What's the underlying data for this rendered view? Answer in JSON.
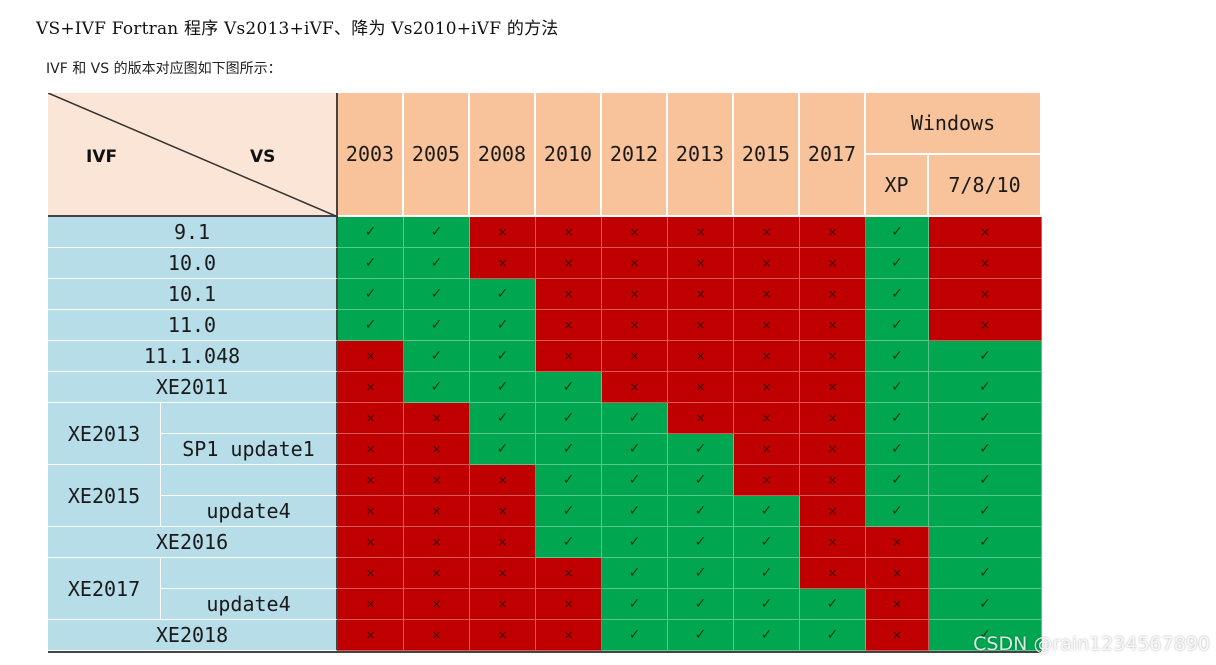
{
  "page": {
    "title": "VS+IVF  Fortran 程序  Vs2013+iVF、降为 Vs2010+iVF 的方法",
    "caption": "IVF 和 VS 的版本对应图如下图所示：",
    "watermark": "CSDN @rain1234567890"
  },
  "table": {
    "corner_left": "IVF",
    "corner_right": "VS",
    "vs_versions": [
      "2003",
      "2005",
      "2008",
      "2010",
      "2012",
      "2013",
      "2015",
      "2017"
    ],
    "windows_header": "Windows",
    "windows_versions": [
      "XP",
      "7/8/10"
    ],
    "row_groups": [
      {
        "label": "9.1",
        "subs": [
          ""
        ]
      },
      {
        "label": "10.0",
        "subs": [
          ""
        ]
      },
      {
        "label": "10.1",
        "subs": [
          ""
        ]
      },
      {
        "label": "11.0",
        "subs": [
          ""
        ]
      },
      {
        "label": "11.1.048",
        "subs": [
          ""
        ]
      },
      {
        "label": "XE2011",
        "subs": [
          ""
        ]
      },
      {
        "label": "XE2013",
        "subs": [
          "",
          "SP1 update1"
        ]
      },
      {
        "label": "XE2015",
        "subs": [
          "",
          "update4"
        ]
      },
      {
        "label": "XE2016",
        "subs": [
          ""
        ]
      },
      {
        "label": "XE2017",
        "subs": [
          "",
          "update4"
        ]
      },
      {
        "label": "XE2018",
        "subs": [
          ""
        ]
      }
    ],
    "symbols": {
      "yes": "✓",
      "no": "×"
    },
    "colors": {
      "yes": "#00a650",
      "no": "#c00000",
      "header": "#f8c29a",
      "row_label": "#b7dde8",
      "corner": "#fbe5d6"
    },
    "matrix": [
      [
        1,
        1,
        0,
        0,
        0,
        0,
        0,
        0,
        1,
        0
      ],
      [
        1,
        1,
        0,
        0,
        0,
        0,
        0,
        0,
        1,
        0
      ],
      [
        1,
        1,
        1,
        0,
        0,
        0,
        0,
        0,
        1,
        0
      ],
      [
        1,
        1,
        1,
        0,
        0,
        0,
        0,
        0,
        1,
        0
      ],
      [
        0,
        1,
        1,
        0,
        0,
        0,
        0,
        0,
        1,
        1
      ],
      [
        0,
        1,
        1,
        1,
        0,
        0,
        0,
        0,
        1,
        1
      ],
      [
        0,
        0,
        1,
        1,
        1,
        0,
        0,
        0,
        1,
        1
      ],
      [
        0,
        0,
        1,
        1,
        1,
        1,
        0,
        0,
        1,
        1
      ],
      [
        0,
        0,
        0,
        1,
        1,
        1,
        0,
        0,
        1,
        1
      ],
      [
        0,
        0,
        0,
        1,
        1,
        1,
        1,
        0,
        1,
        1
      ],
      [
        0,
        0,
        0,
        1,
        1,
        1,
        1,
        0,
        0,
        1
      ],
      [
        0,
        0,
        0,
        0,
        1,
        1,
        1,
        0,
        0,
        1
      ],
      [
        0,
        0,
        0,
        0,
        1,
        1,
        1,
        1,
        0,
        1
      ],
      [
        0,
        0,
        0,
        0,
        1,
        1,
        1,
        1,
        0,
        1
      ]
    ]
  }
}
